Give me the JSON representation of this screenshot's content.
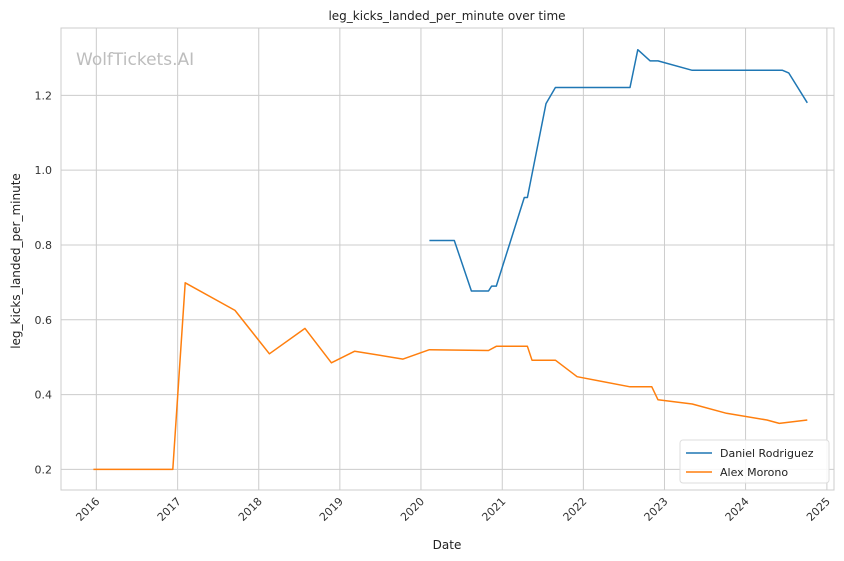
{
  "watermark": "WolfTickets.AI",
  "chart_data": {
    "type": "line",
    "title": "leg_kicks_landed_per_minute over time",
    "xlabel": "Date",
    "ylabel": "leg_kicks_landed_per_minute",
    "xlim": [
      "2015-07-26",
      "2025-02-02"
    ],
    "ylim": [
      0.145,
      1.38
    ],
    "x_ticks": [
      "2016",
      "2017",
      "2018",
      "2019",
      "2020",
      "2021",
      "2022",
      "2023",
      "2024",
      "2025"
    ],
    "y_ticks": [
      "0.2",
      "0.4",
      "0.6",
      "0.8",
      "1.0",
      "1.2"
    ],
    "grid": true,
    "legend_position": "bottom-right",
    "series": [
      {
        "name": "Daniel Rodriguez",
        "color": "#1f77b4",
        "points": [
          [
            "2020-02-08",
            0.812
          ],
          [
            "2020-05-30",
            0.812
          ],
          [
            "2020-08-15",
            0.677
          ],
          [
            "2020-10-31",
            0.677
          ],
          [
            "2020-11-14",
            0.69
          ],
          [
            "2020-12-05",
            0.69
          ],
          [
            "2021-04-10",
            0.927
          ],
          [
            "2021-04-24",
            0.927
          ],
          [
            "2021-07-17",
            1.178
          ],
          [
            "2021-08-28",
            1.221
          ],
          [
            "2022-07-30",
            1.221
          ],
          [
            "2022-09-03",
            1.322
          ],
          [
            "2022-10-29",
            1.292
          ],
          [
            "2022-12-03",
            1.292
          ],
          [
            "2023-05-06",
            1.267
          ],
          [
            "2024-06-15",
            1.267
          ],
          [
            "2024-07-13",
            1.26
          ],
          [
            "2024-10-05",
            1.18
          ]
        ]
      },
      {
        "name": "Alex Morono",
        "color": "#ff7f0e",
        "points": [
          [
            "2015-12-19",
            0.2
          ],
          [
            "2016-12-10",
            0.2
          ],
          [
            "2017-02-04",
            0.699
          ],
          [
            "2017-09-16",
            0.625
          ],
          [
            "2018-02-18",
            0.509
          ],
          [
            "2018-07-28",
            0.577
          ],
          [
            "2018-11-24",
            0.485
          ],
          [
            "2019-03-09",
            0.516
          ],
          [
            "2019-10-12",
            0.495
          ],
          [
            "2020-02-08",
            0.52
          ],
          [
            "2020-10-31",
            0.518
          ],
          [
            "2020-12-05",
            0.529
          ],
          [
            "2021-04-24",
            0.529
          ],
          [
            "2021-05-15",
            0.492
          ],
          [
            "2021-08-28",
            0.492
          ],
          [
            "2021-12-04",
            0.448
          ],
          [
            "2022-07-30",
            0.421
          ],
          [
            "2022-11-05",
            0.421
          ],
          [
            "2022-12-03",
            0.386
          ],
          [
            "2023-05-06",
            0.375
          ],
          [
            "2023-10-07",
            0.35
          ],
          [
            "2024-04-06",
            0.332
          ],
          [
            "2024-06-01",
            0.323
          ],
          [
            "2024-10-05",
            0.332
          ]
        ]
      }
    ]
  }
}
